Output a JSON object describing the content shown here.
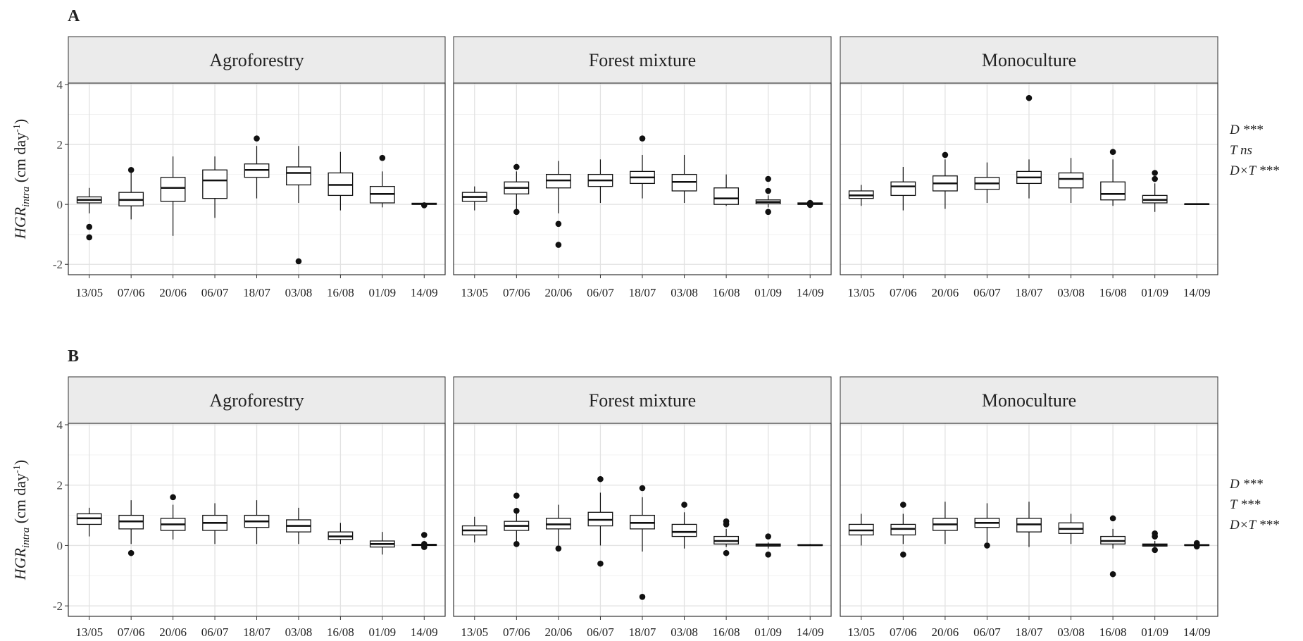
{
  "chart_data": [
    {
      "type": "boxplot",
      "letter": "A",
      "ylabel": {
        "main": "HGR",
        "sub": "intra",
        "unit_pre": " (cm day",
        "unit_sup": "-1",
        "unit_post": ")"
      },
      "ylim": [
        -2.3,
        4.0
      ],
      "yticks": [
        4,
        2,
        0,
        -2
      ],
      "yticklabels": [
        "4",
        "2",
        "0",
        "-2"
      ],
      "categories": [
        "13/05",
        "07/06",
        "20/06",
        "06/07",
        "18/07",
        "03/08",
        "16/08",
        "01/09",
        "14/09"
      ],
      "grid": true,
      "stats": [
        "D ***",
        "T ns",
        "D×T ***"
      ],
      "facets": [
        {
          "title": "Agroforestry",
          "boxes": [
            {
              "min": -0.3,
              "q1": 0.05,
              "median": 0.15,
              "q3": 0.25,
              "max": 0.55,
              "outliers": [
                -0.75,
                -1.1
              ]
            },
            {
              "min": -0.5,
              "q1": -0.05,
              "median": 0.15,
              "q3": 0.4,
              "max": 1.1,
              "outliers": [
                1.15
              ]
            },
            {
              "min": -1.05,
              "q1": 0.1,
              "median": 0.55,
              "q3": 0.9,
              "max": 1.6,
              "outliers": []
            },
            {
              "min": -0.45,
              "q1": 0.2,
              "median": 0.8,
              "q3": 1.15,
              "max": 1.6,
              "outliers": []
            },
            {
              "min": 0.2,
              "q1": 0.9,
              "median": 1.15,
              "q3": 1.35,
              "max": 1.95,
              "outliers": [
                2.2
              ]
            },
            {
              "min": 0.05,
              "q1": 0.65,
              "median": 1.05,
              "q3": 1.25,
              "max": 1.95,
              "outliers": [
                -1.9
              ]
            },
            {
              "min": -0.2,
              "q1": 0.3,
              "median": 0.65,
              "q3": 1.05,
              "max": 1.75,
              "outliers": []
            },
            {
              "min": -0.1,
              "q1": 0.05,
              "median": 0.35,
              "q3": 0.6,
              "max": 1.1,
              "outliers": [
                1.55
              ]
            },
            {
              "min": 0.0,
              "q1": 0.0,
              "median": 0.02,
              "q3": 0.04,
              "max": 0.06,
              "outliers": [
                -0.03
              ]
            }
          ]
        },
        {
          "title": "Forest mixture",
          "boxes": [
            {
              "min": -0.2,
              "q1": 0.1,
              "median": 0.25,
              "q3": 0.4,
              "max": 0.6,
              "outliers": []
            },
            {
              "min": -0.15,
              "q1": 0.35,
              "median": 0.55,
              "q3": 0.75,
              "max": 1.1,
              "outliers": [
                1.25,
                -0.25
              ]
            },
            {
              "min": -0.3,
              "q1": 0.55,
              "median": 0.8,
              "q3": 1.0,
              "max": 1.45,
              "outliers": [
                -0.65,
                -1.35
              ]
            },
            {
              "min": 0.05,
              "q1": 0.6,
              "median": 0.8,
              "q3": 1.0,
              "max": 1.5,
              "outliers": []
            },
            {
              "min": 0.2,
              "q1": 0.7,
              "median": 0.9,
              "q3": 1.1,
              "max": 1.65,
              "outliers": [
                2.2
              ]
            },
            {
              "min": 0.05,
              "q1": 0.45,
              "median": 0.75,
              "q3": 1.0,
              "max": 1.65,
              "outliers": []
            },
            {
              "min": -0.05,
              "q1": 0.0,
              "median": 0.2,
              "q3": 0.55,
              "max": 1.0,
              "outliers": []
            },
            {
              "min": -0.1,
              "q1": 0.02,
              "median": 0.08,
              "q3": 0.15,
              "max": 0.3,
              "outliers": [
                0.85,
                0.45,
                -0.25
              ]
            },
            {
              "min": 0.0,
              "q1": 0.0,
              "median": 0.02,
              "q3": 0.05,
              "max": 0.08,
              "outliers": [
                0.05,
                -0.02
              ]
            }
          ]
        },
        {
          "title": "Monoculture",
          "boxes": [
            {
              "min": -0.05,
              "q1": 0.2,
              "median": 0.3,
              "q3": 0.45,
              "max": 0.65,
              "outliers": []
            },
            {
              "min": -0.2,
              "q1": 0.3,
              "median": 0.6,
              "q3": 0.75,
              "max": 1.25,
              "outliers": []
            },
            {
              "min": -0.15,
              "q1": 0.45,
              "median": 0.7,
              "q3": 0.95,
              "max": 1.5,
              "outliers": [
                1.65
              ]
            },
            {
              "min": 0.05,
              "q1": 0.5,
              "median": 0.7,
              "q3": 0.9,
              "max": 1.4,
              "outliers": []
            },
            {
              "min": 0.2,
              "q1": 0.7,
              "median": 0.9,
              "q3": 1.1,
              "max": 1.5,
              "outliers": [
                3.55
              ]
            },
            {
              "min": 0.05,
              "q1": 0.55,
              "median": 0.85,
              "q3": 1.05,
              "max": 1.55,
              "outliers": []
            },
            {
              "min": -0.05,
              "q1": 0.15,
              "median": 0.35,
              "q3": 0.75,
              "max": 1.5,
              "outliers": [
                1.75
              ]
            },
            {
              "min": -0.25,
              "q1": 0.05,
              "median": 0.15,
              "q3": 0.3,
              "max": 0.7,
              "outliers": [
                1.05,
                0.85
              ]
            },
            {
              "min": 0.0,
              "q1": 0.0,
              "median": 0.01,
              "q3": 0.02,
              "max": 0.03,
              "outliers": []
            }
          ]
        }
      ]
    },
    {
      "type": "boxplot",
      "letter": "B",
      "ylabel": {
        "main": "HGR",
        "sub": "intra",
        "unit_pre": " (cm day",
        "unit_sup": "-1",
        "unit_post": ")"
      },
      "ylim": [
        -2.3,
        4.0
      ],
      "yticks": [
        4,
        2,
        0,
        -2
      ],
      "yticklabels": [
        "4",
        "2",
        "0",
        "-2"
      ],
      "categories": [
        "13/05",
        "07/06",
        "20/06",
        "06/07",
        "18/07",
        "03/08",
        "16/08",
        "01/09",
        "14/09"
      ],
      "grid": true,
      "stats": [
        "D ***",
        "T ***",
        "D×T ***"
      ],
      "facets": [
        {
          "title": "Agroforestry",
          "boxes": [
            {
              "min": 0.3,
              "q1": 0.7,
              "median": 0.9,
              "q3": 1.05,
              "max": 1.25,
              "outliers": []
            },
            {
              "min": 0.05,
              "q1": 0.55,
              "median": 0.8,
              "q3": 1.0,
              "max": 1.5,
              "outliers": [
                -0.25
              ]
            },
            {
              "min": 0.2,
              "q1": 0.5,
              "median": 0.7,
              "q3": 0.9,
              "max": 1.35,
              "outliers": [
                1.6
              ]
            },
            {
              "min": 0.05,
              "q1": 0.5,
              "median": 0.75,
              "q3": 1.0,
              "max": 1.4,
              "outliers": []
            },
            {
              "min": 0.05,
              "q1": 0.6,
              "median": 0.8,
              "q3": 1.0,
              "max": 1.5,
              "outliers": []
            },
            {
              "min": 0.05,
              "q1": 0.45,
              "median": 0.65,
              "q3": 0.85,
              "max": 1.25,
              "outliers": []
            },
            {
              "min": 0.05,
              "q1": 0.2,
              "median": 0.3,
              "q3": 0.45,
              "max": 0.75,
              "outliers": []
            },
            {
              "min": -0.3,
              "q1": -0.05,
              "median": 0.05,
              "q3": 0.15,
              "max": 0.45,
              "outliers": []
            },
            {
              "min": 0.0,
              "q1": 0.0,
              "median": 0.02,
              "q3": 0.04,
              "max": 0.1,
              "outliers": [
                0.35,
                0.05,
                -0.05
              ]
            }
          ]
        },
        {
          "title": "Forest mixture",
          "boxes": [
            {
              "min": 0.1,
              "q1": 0.35,
              "median": 0.5,
              "q3": 0.65,
              "max": 0.95,
              "outliers": []
            },
            {
              "min": 0.1,
              "q1": 0.5,
              "median": 0.65,
              "q3": 0.8,
              "max": 1.05,
              "outliers": [
                1.65,
                1.15,
                0.05
              ]
            },
            {
              "min": 0.0,
              "q1": 0.55,
              "median": 0.7,
              "q3": 0.9,
              "max": 1.35,
              "outliers": [
                -0.1
              ]
            },
            {
              "min": 0.0,
              "q1": 0.65,
              "median": 0.85,
              "q3": 1.1,
              "max": 1.75,
              "outliers": [
                2.2,
                -0.6
              ]
            },
            {
              "min": -0.2,
              "q1": 0.55,
              "median": 0.75,
              "q3": 1.0,
              "max": 1.6,
              "outliers": [
                1.9,
                -1.7
              ]
            },
            {
              "min": -0.1,
              "q1": 0.3,
              "median": 0.45,
              "q3": 0.7,
              "max": 1.1,
              "outliers": [
                1.35
              ]
            },
            {
              "min": -0.05,
              "q1": 0.05,
              "median": 0.15,
              "q3": 0.3,
              "max": 0.55,
              "outliers": [
                0.8,
                0.7,
                -0.25
              ]
            },
            {
              "min": -0.1,
              "q1": -0.02,
              "median": 0.02,
              "q3": 0.05,
              "max": 0.1,
              "outliers": [
                0.3,
                -0.3
              ]
            },
            {
              "min": 0.0,
              "q1": 0.0,
              "median": 0.01,
              "q3": 0.03,
              "max": 0.05,
              "outliers": []
            }
          ]
        },
        {
          "title": "Monoculture",
          "boxes": [
            {
              "min": 0.0,
              "q1": 0.35,
              "median": 0.5,
              "q3": 0.7,
              "max": 1.05,
              "outliers": []
            },
            {
              "min": 0.05,
              "q1": 0.35,
              "median": 0.55,
              "q3": 0.7,
              "max": 1.05,
              "outliers": [
                1.35,
                -0.3
              ]
            },
            {
              "min": 0.05,
              "q1": 0.5,
              "median": 0.7,
              "q3": 0.9,
              "max": 1.45,
              "outliers": []
            },
            {
              "min": 0.1,
              "q1": 0.6,
              "median": 0.75,
              "q3": 0.9,
              "max": 1.4,
              "outliers": [
                0.0
              ]
            },
            {
              "min": -0.05,
              "q1": 0.45,
              "median": 0.7,
              "q3": 0.9,
              "max": 1.45,
              "outliers": []
            },
            {
              "min": 0.05,
              "q1": 0.4,
              "median": 0.55,
              "q3": 0.75,
              "max": 1.05,
              "outliers": []
            },
            {
              "min": -0.1,
              "q1": 0.05,
              "median": 0.15,
              "q3": 0.3,
              "max": 0.55,
              "outliers": [
                0.9,
                -0.95
              ]
            },
            {
              "min": -0.1,
              "q1": -0.02,
              "median": 0.02,
              "q3": 0.05,
              "max": 0.15,
              "outliers": [
                0.4,
                0.3,
                -0.15
              ]
            },
            {
              "min": 0.0,
              "q1": 0.0,
              "median": 0.01,
              "q3": 0.03,
              "max": 0.05,
              "outliers": [
                0.08,
                -0.03
              ]
            }
          ]
        }
      ]
    }
  ]
}
